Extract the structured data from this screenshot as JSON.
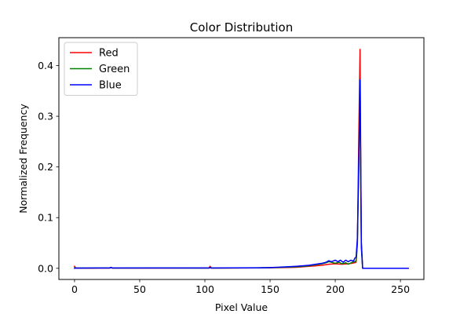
{
  "chart_data": {
    "type": "line",
    "title": "Color Distribution",
    "xlabel": "Pixel Value",
    "ylabel": "Normalized Frequency",
    "xlim": [
      -12,
      268
    ],
    "ylim": [
      -0.022,
      0.455
    ],
    "xticks": [
      0,
      50,
      100,
      150,
      200,
      250
    ],
    "yticks": [
      0.0,
      0.1,
      0.2,
      0.3,
      0.4
    ],
    "xtick_labels": [
      "0",
      "50",
      "100",
      "150",
      "200",
      "250"
    ],
    "ytick_labels": [
      "0.0",
      "0.1",
      "0.2",
      "0.3",
      "0.4"
    ],
    "grid": false,
    "legend_position": "top-left",
    "series": [
      {
        "name": "Red",
        "color": "#ff0000",
        "points": [
          [
            0,
            0.004
          ],
          [
            1,
            0.0005
          ],
          [
            10,
            0.0003
          ],
          [
            27,
            0.0005
          ],
          [
            28,
            0.0012
          ],
          [
            29,
            0.0004
          ],
          [
            60,
            0.0005
          ],
          [
            100,
            0.0006
          ],
          [
            103,
            0.0004
          ],
          [
            104,
            0.004
          ],
          [
            105,
            0.0005
          ],
          [
            140,
            0.0008
          ],
          [
            150,
            0.001
          ],
          [
            160,
            0.0015
          ],
          [
            170,
            0.002
          ],
          [
            175,
            0.003
          ],
          [
            180,
            0.004
          ],
          [
            185,
            0.005
          ],
          [
            190,
            0.006
          ],
          [
            195,
            0.008
          ],
          [
            200,
            0.009
          ],
          [
            205,
            0.008
          ],
          [
            210,
            0.009
          ],
          [
            213,
            0.01
          ],
          [
            215,
            0.011
          ],
          [
            216,
            0.012
          ],
          [
            217,
            0.05
          ],
          [
            218,
            0.25
          ],
          [
            219,
            0.432
          ],
          [
            220,
            0.05
          ],
          [
            221,
            0.0
          ],
          [
            256,
            0.0
          ]
        ]
      },
      {
        "name": "Green",
        "color": "#008000",
        "points": [
          [
            0,
            0.001
          ],
          [
            1,
            0.0005
          ],
          [
            27,
            0.0006
          ],
          [
            28,
            0.0015
          ],
          [
            29,
            0.0005
          ],
          [
            60,
            0.0006
          ],
          [
            103,
            0.0004
          ],
          [
            104,
            0.002
          ],
          [
            105,
            0.0005
          ],
          [
            140,
            0.0008
          ],
          [
            150,
            0.0012
          ],
          [
            160,
            0.002
          ],
          [
            170,
            0.003
          ],
          [
            175,
            0.004
          ],
          [
            180,
            0.005
          ],
          [
            185,
            0.007
          ],
          [
            190,
            0.009
          ],
          [
            193,
            0.011
          ],
          [
            195,
            0.013
          ],
          [
            197,
            0.012
          ],
          [
            200,
            0.01
          ],
          [
            203,
            0.012
          ],
          [
            205,
            0.009
          ],
          [
            208,
            0.011
          ],
          [
            210,
            0.008
          ],
          [
            213,
            0.012
          ],
          [
            215,
            0.013
          ],
          [
            216,
            0.015
          ],
          [
            217,
            0.05
          ],
          [
            218,
            0.2
          ],
          [
            219,
            0.37
          ],
          [
            220,
            0.04
          ],
          [
            221,
            0.0
          ],
          [
            256,
            0.0
          ]
        ]
      },
      {
        "name": "Blue",
        "color": "#0000ff",
        "points": [
          [
            0,
            0.0
          ],
          [
            1,
            0.0005
          ],
          [
            27,
            0.0007
          ],
          [
            28,
            0.002
          ],
          [
            29,
            0.0006
          ],
          [
            60,
            0.0007
          ],
          [
            103,
            0.0006
          ],
          [
            104,
            0.001
          ],
          [
            105,
            0.0007
          ],
          [
            140,
            0.001
          ],
          [
            150,
            0.0015
          ],
          [
            160,
            0.0025
          ],
          [
            170,
            0.004
          ],
          [
            175,
            0.005
          ],
          [
            180,
            0.006
          ],
          [
            185,
            0.008
          ],
          [
            190,
            0.01
          ],
          [
            193,
            0.012
          ],
          [
            195,
            0.015
          ],
          [
            197,
            0.013
          ],
          [
            200,
            0.016
          ],
          [
            202,
            0.013
          ],
          [
            204,
            0.016
          ],
          [
            206,
            0.012
          ],
          [
            208,
            0.016
          ],
          [
            210,
            0.013
          ],
          [
            212,
            0.016
          ],
          [
            214,
            0.014
          ],
          [
            215,
            0.02
          ],
          [
            216,
            0.022
          ],
          [
            217,
            0.06
          ],
          [
            218,
            0.2
          ],
          [
            219,
            0.372
          ],
          [
            220,
            0.05
          ],
          [
            221,
            0.0
          ],
          [
            256,
            0.0
          ]
        ]
      }
    ]
  }
}
